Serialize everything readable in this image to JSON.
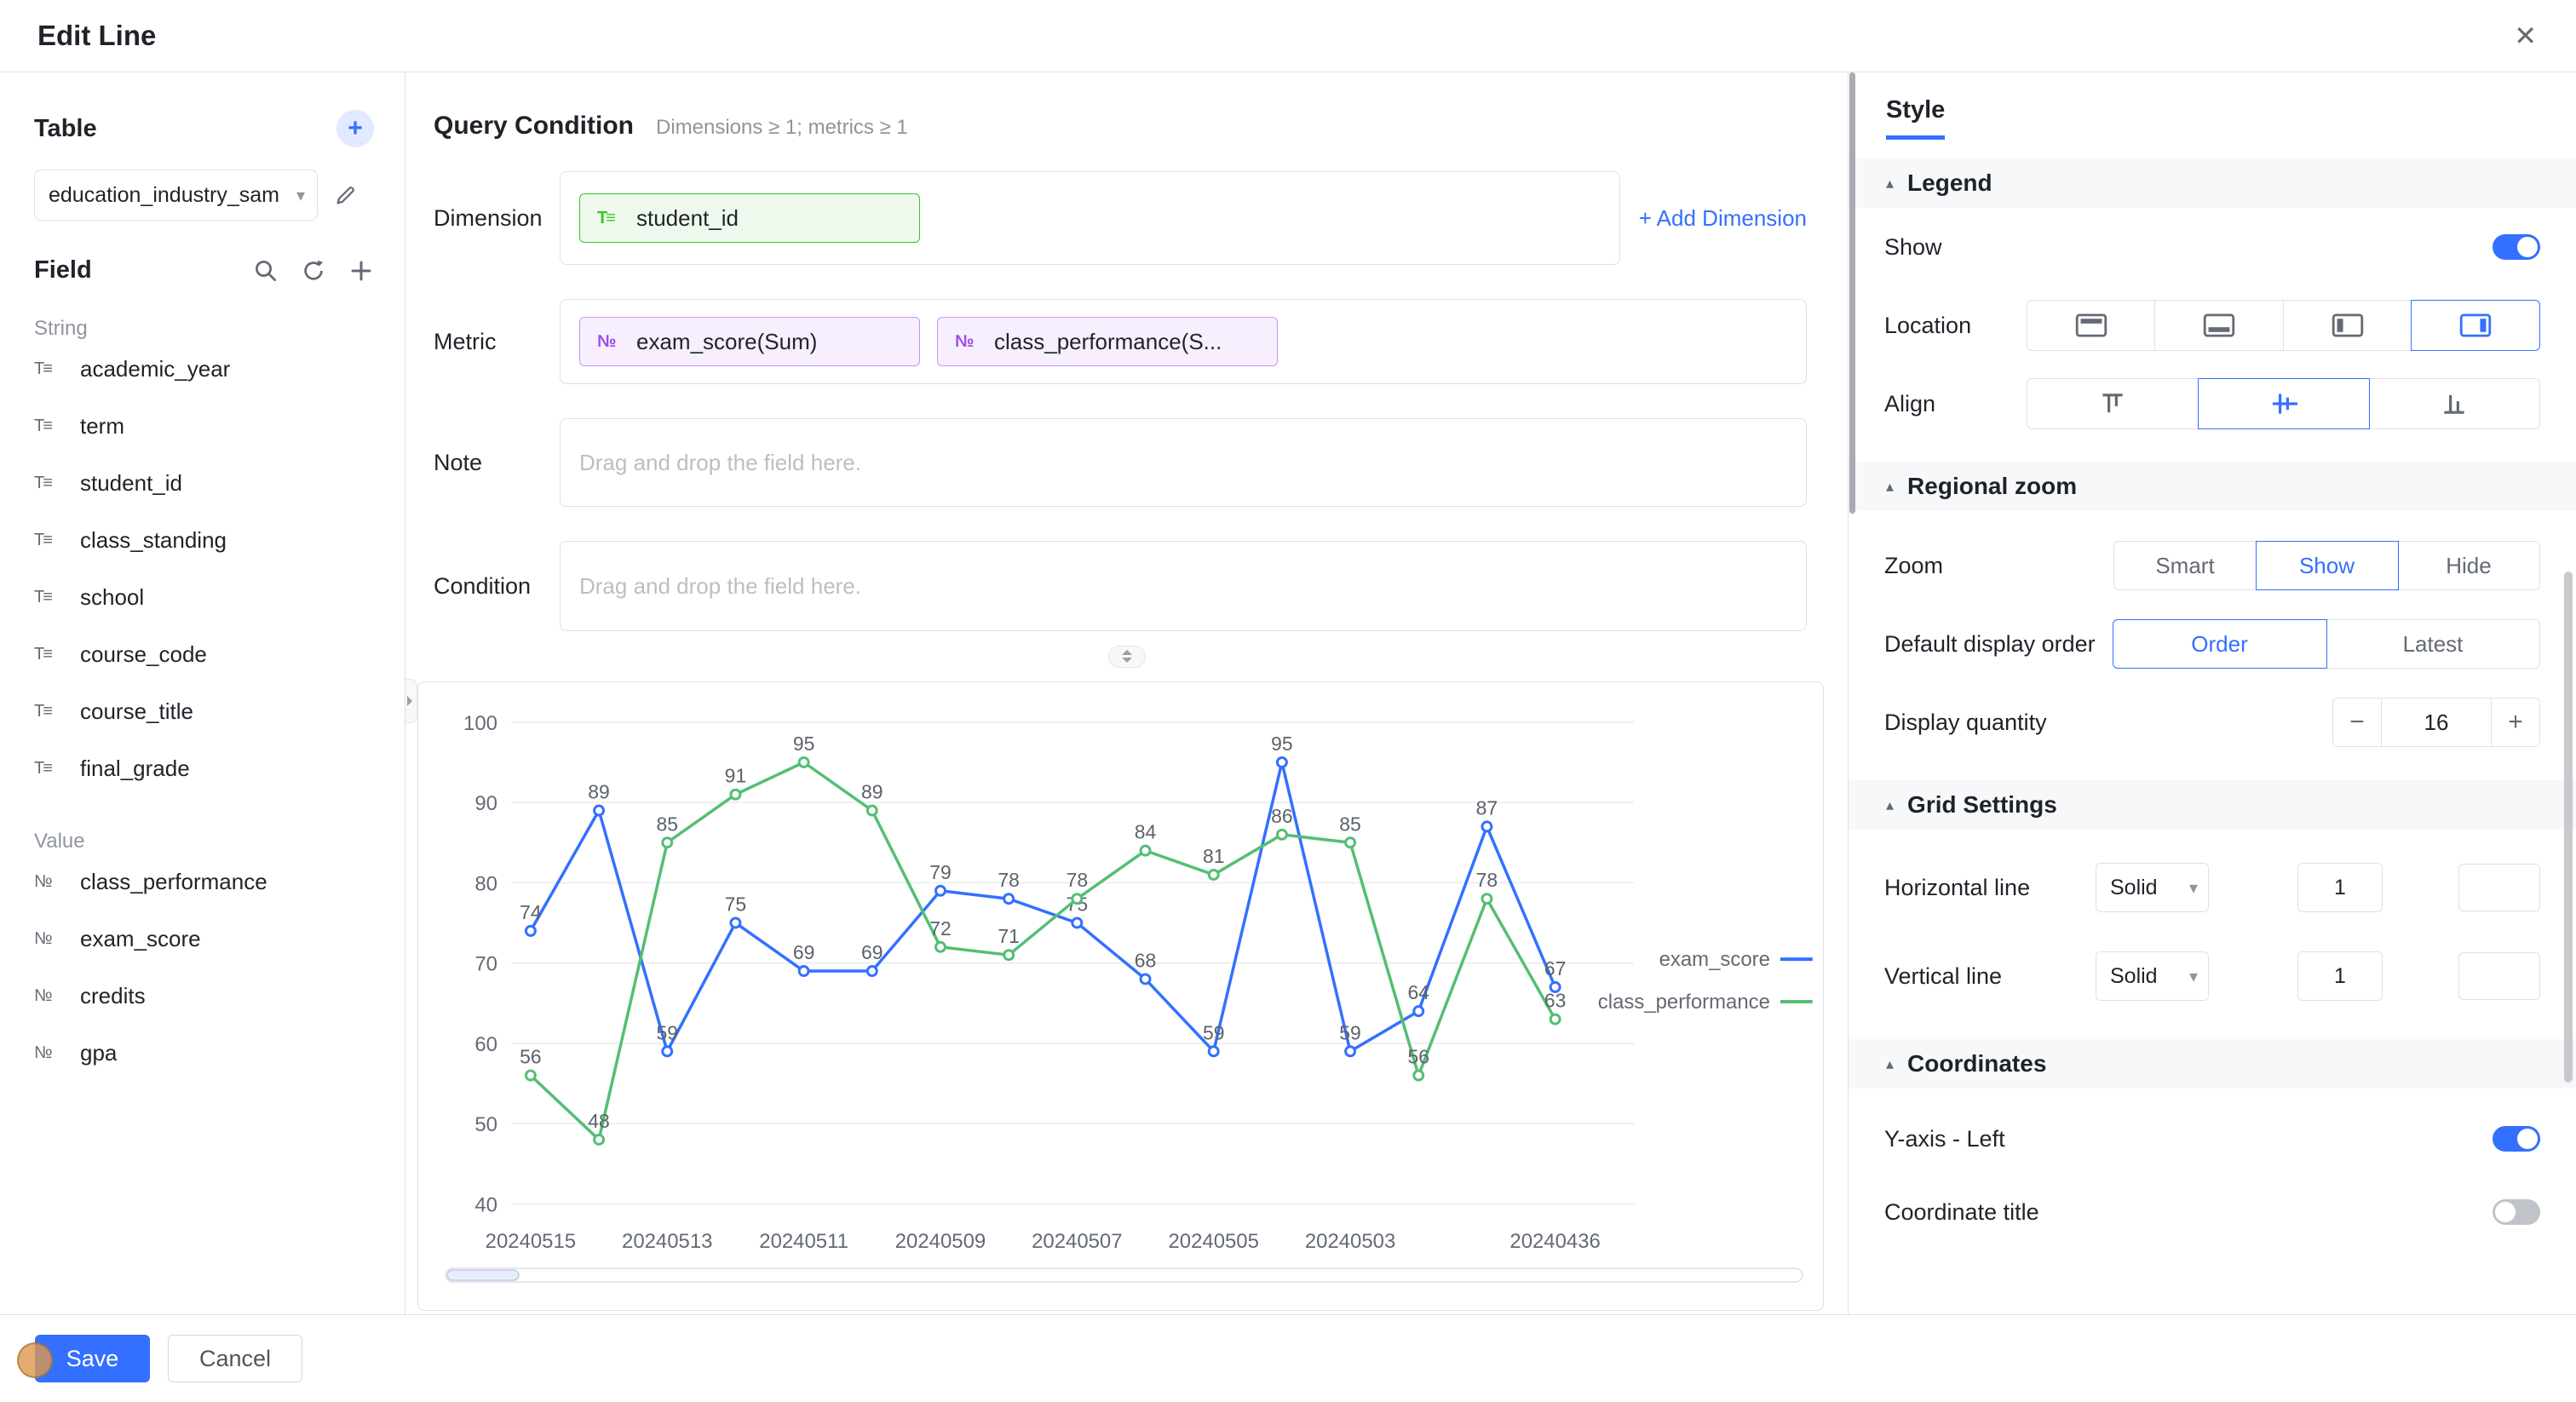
{
  "header": {
    "title": "Edit Line"
  },
  "icons": {
    "close": "✕",
    "add": "+",
    "caret": "▾",
    "collapse": "▴",
    "minus": "−",
    "plus": "+",
    "string_field": "T≡",
    "value_field": "№"
  },
  "sidebar": {
    "table_section": {
      "title": "Table",
      "selected_table": "education_industry_sample"
    },
    "field_section": {
      "title": "Field"
    },
    "groups": [
      {
        "label": "String",
        "fields": [
          "academic_year",
          "term",
          "student_id",
          "class_standing",
          "school",
          "course_code",
          "course_title",
          "final_grade"
        ]
      },
      {
        "label": "Value",
        "fields": [
          "class_performance",
          "exam_score",
          "credits",
          "gpa"
        ]
      }
    ]
  },
  "query": {
    "title": "Query Condition",
    "hint": "Dimensions ≥ 1; metrics ≥ 1",
    "dimension": {
      "label": "Dimension",
      "chips": [
        "student_id"
      ],
      "add_label": "+ Add Dimension"
    },
    "metric": {
      "label": "Metric",
      "chips": [
        "exam_score(Sum)",
        "class_performance(S..."
      ]
    },
    "note": {
      "label": "Note",
      "placeholder": "Drag and drop the field here."
    },
    "condition": {
      "label": "Condition",
      "placeholder": "Drag and drop the field here."
    }
  },
  "chart_data": {
    "type": "line",
    "categories": [
      "20240515",
      "",
      "20240513",
      "",
      "20240511",
      "",
      "20240509",
      "",
      "20240507",
      "",
      "20240505",
      "",
      "20240503",
      "",
      "",
      "20240436"
    ],
    "series": [
      {
        "name": "exam_score",
        "color": "#3370FF",
        "values": [
          74,
          89,
          59,
          75,
          69,
          69,
          79,
          78,
          75,
          68,
          59,
          95,
          59,
          64,
          87,
          67
        ]
      },
      {
        "name": "class_performance",
        "color": "#54BE73",
        "values": [
          56,
          48,
          85,
          91,
          95,
          89,
          72,
          71,
          78,
          84,
          81,
          86,
          85,
          56,
          78,
          63
        ]
      }
    ],
    "ylim": [
      40,
      100
    ],
    "yticks": [
      40,
      50,
      60,
      70,
      80,
      90,
      100
    ],
    "grid": true,
    "show_point_labels": true,
    "legend_position": "middle-right",
    "datazoom": true
  },
  "style_panel": {
    "tab": "Style",
    "legend": {
      "title": "Legend",
      "show_label": "Show",
      "show_on": true,
      "location_label": "Location",
      "location_selected": "right",
      "align_label": "Align",
      "align_selected": "center"
    },
    "regional_zoom": {
      "title": "Regional zoom",
      "zoom_label": "Zoom",
      "zoom_options": [
        "Smart",
        "Show",
        "Hide"
      ],
      "zoom_selected": "Show",
      "order_label": "Default display order",
      "order_options": [
        "Order",
        "Latest"
      ],
      "order_selected": "Order",
      "quantity_label": "Display quantity",
      "quantity_value": "16"
    },
    "grid": {
      "title": "Grid Settings",
      "rows": [
        {
          "label": "Horizontal line",
          "style": "Solid",
          "width": "1"
        },
        {
          "label": "Vertical line",
          "style": "Solid",
          "width": "1"
        }
      ]
    },
    "coordinates": {
      "title": "Coordinates",
      "toggles": [
        {
          "label": "Y-axis - Left",
          "on": true
        },
        {
          "label": "Coordinate title",
          "on": false
        }
      ]
    }
  },
  "footer": {
    "save_label": "Save",
    "cancel_label": "Cancel"
  }
}
